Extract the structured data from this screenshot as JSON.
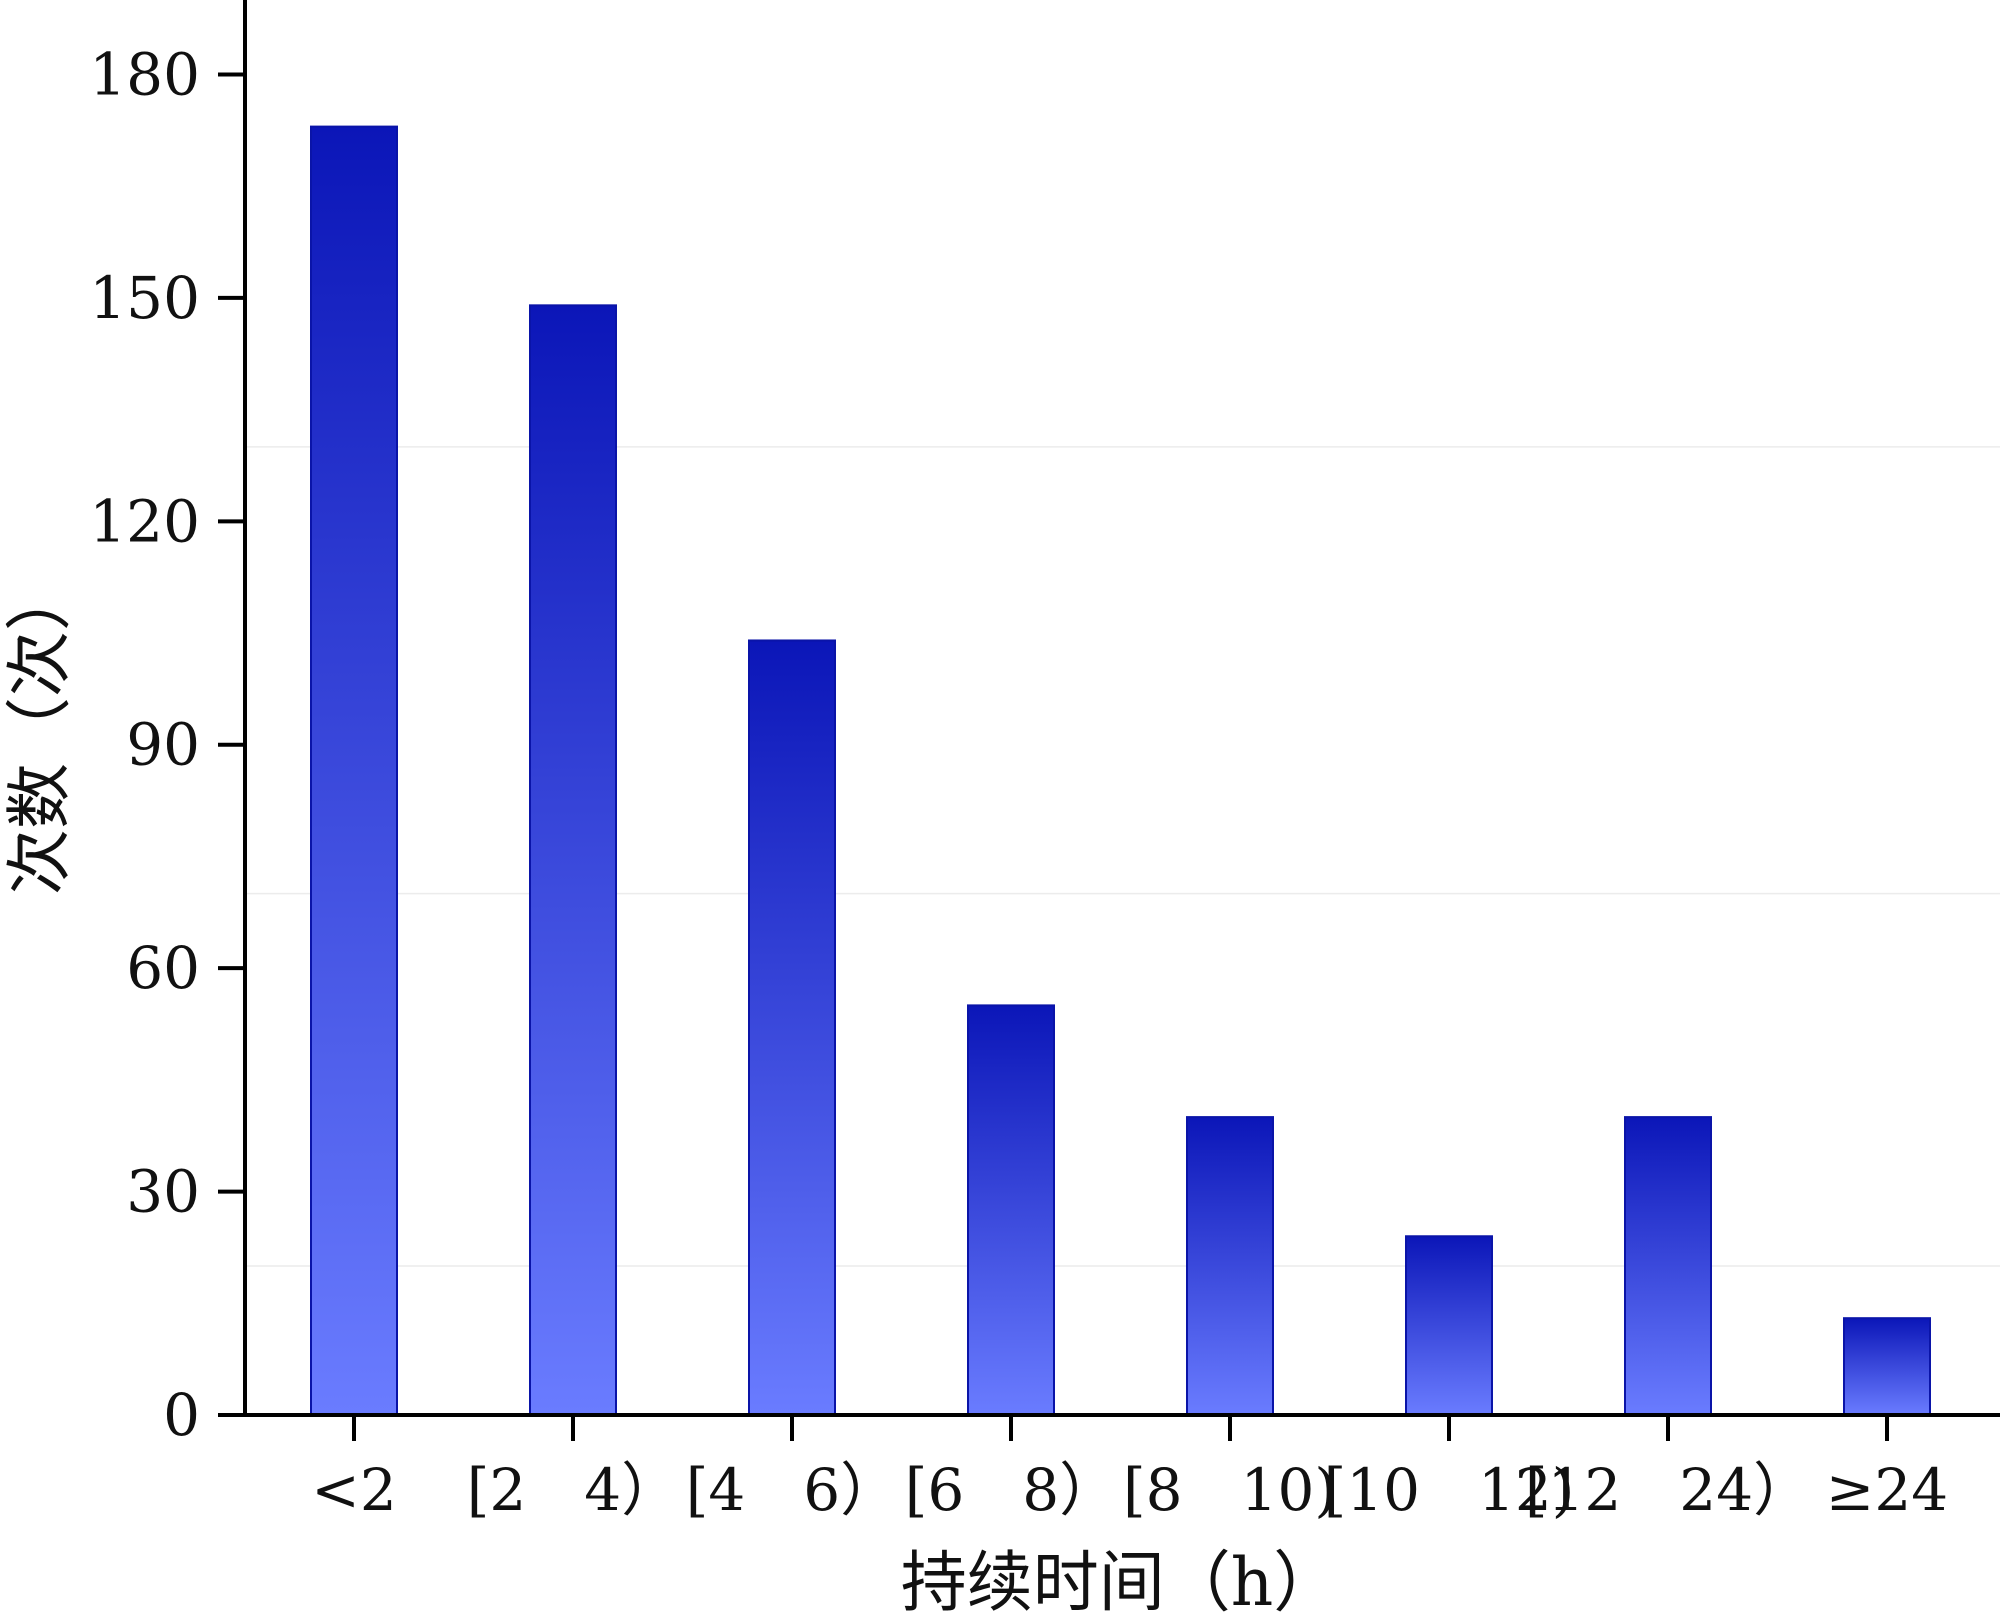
{
  "chart_data": {
    "type": "bar",
    "categories": [
      "<2",
      "[2　4）",
      "[4　6）",
      "[6　8）",
      "[8　10)",
      "[10　12)",
      "[12　24）",
      "≥24"
    ],
    "values": [
      173,
      149,
      104,
      55,
      40,
      24,
      40,
      13
    ],
    "xlabel": "持续时间（h）",
    "ylabel": "次数（次）",
    "ylim": [
      0,
      190
    ],
    "yticks": [
      0,
      30,
      60,
      90,
      120,
      150,
      180
    ],
    "grid": false,
    "colors": {
      "bar_top": "#0b16b8",
      "bar_bottom": "#6a7cff",
      "bar_stroke": "#0a14a8",
      "axis": "#000000"
    }
  }
}
